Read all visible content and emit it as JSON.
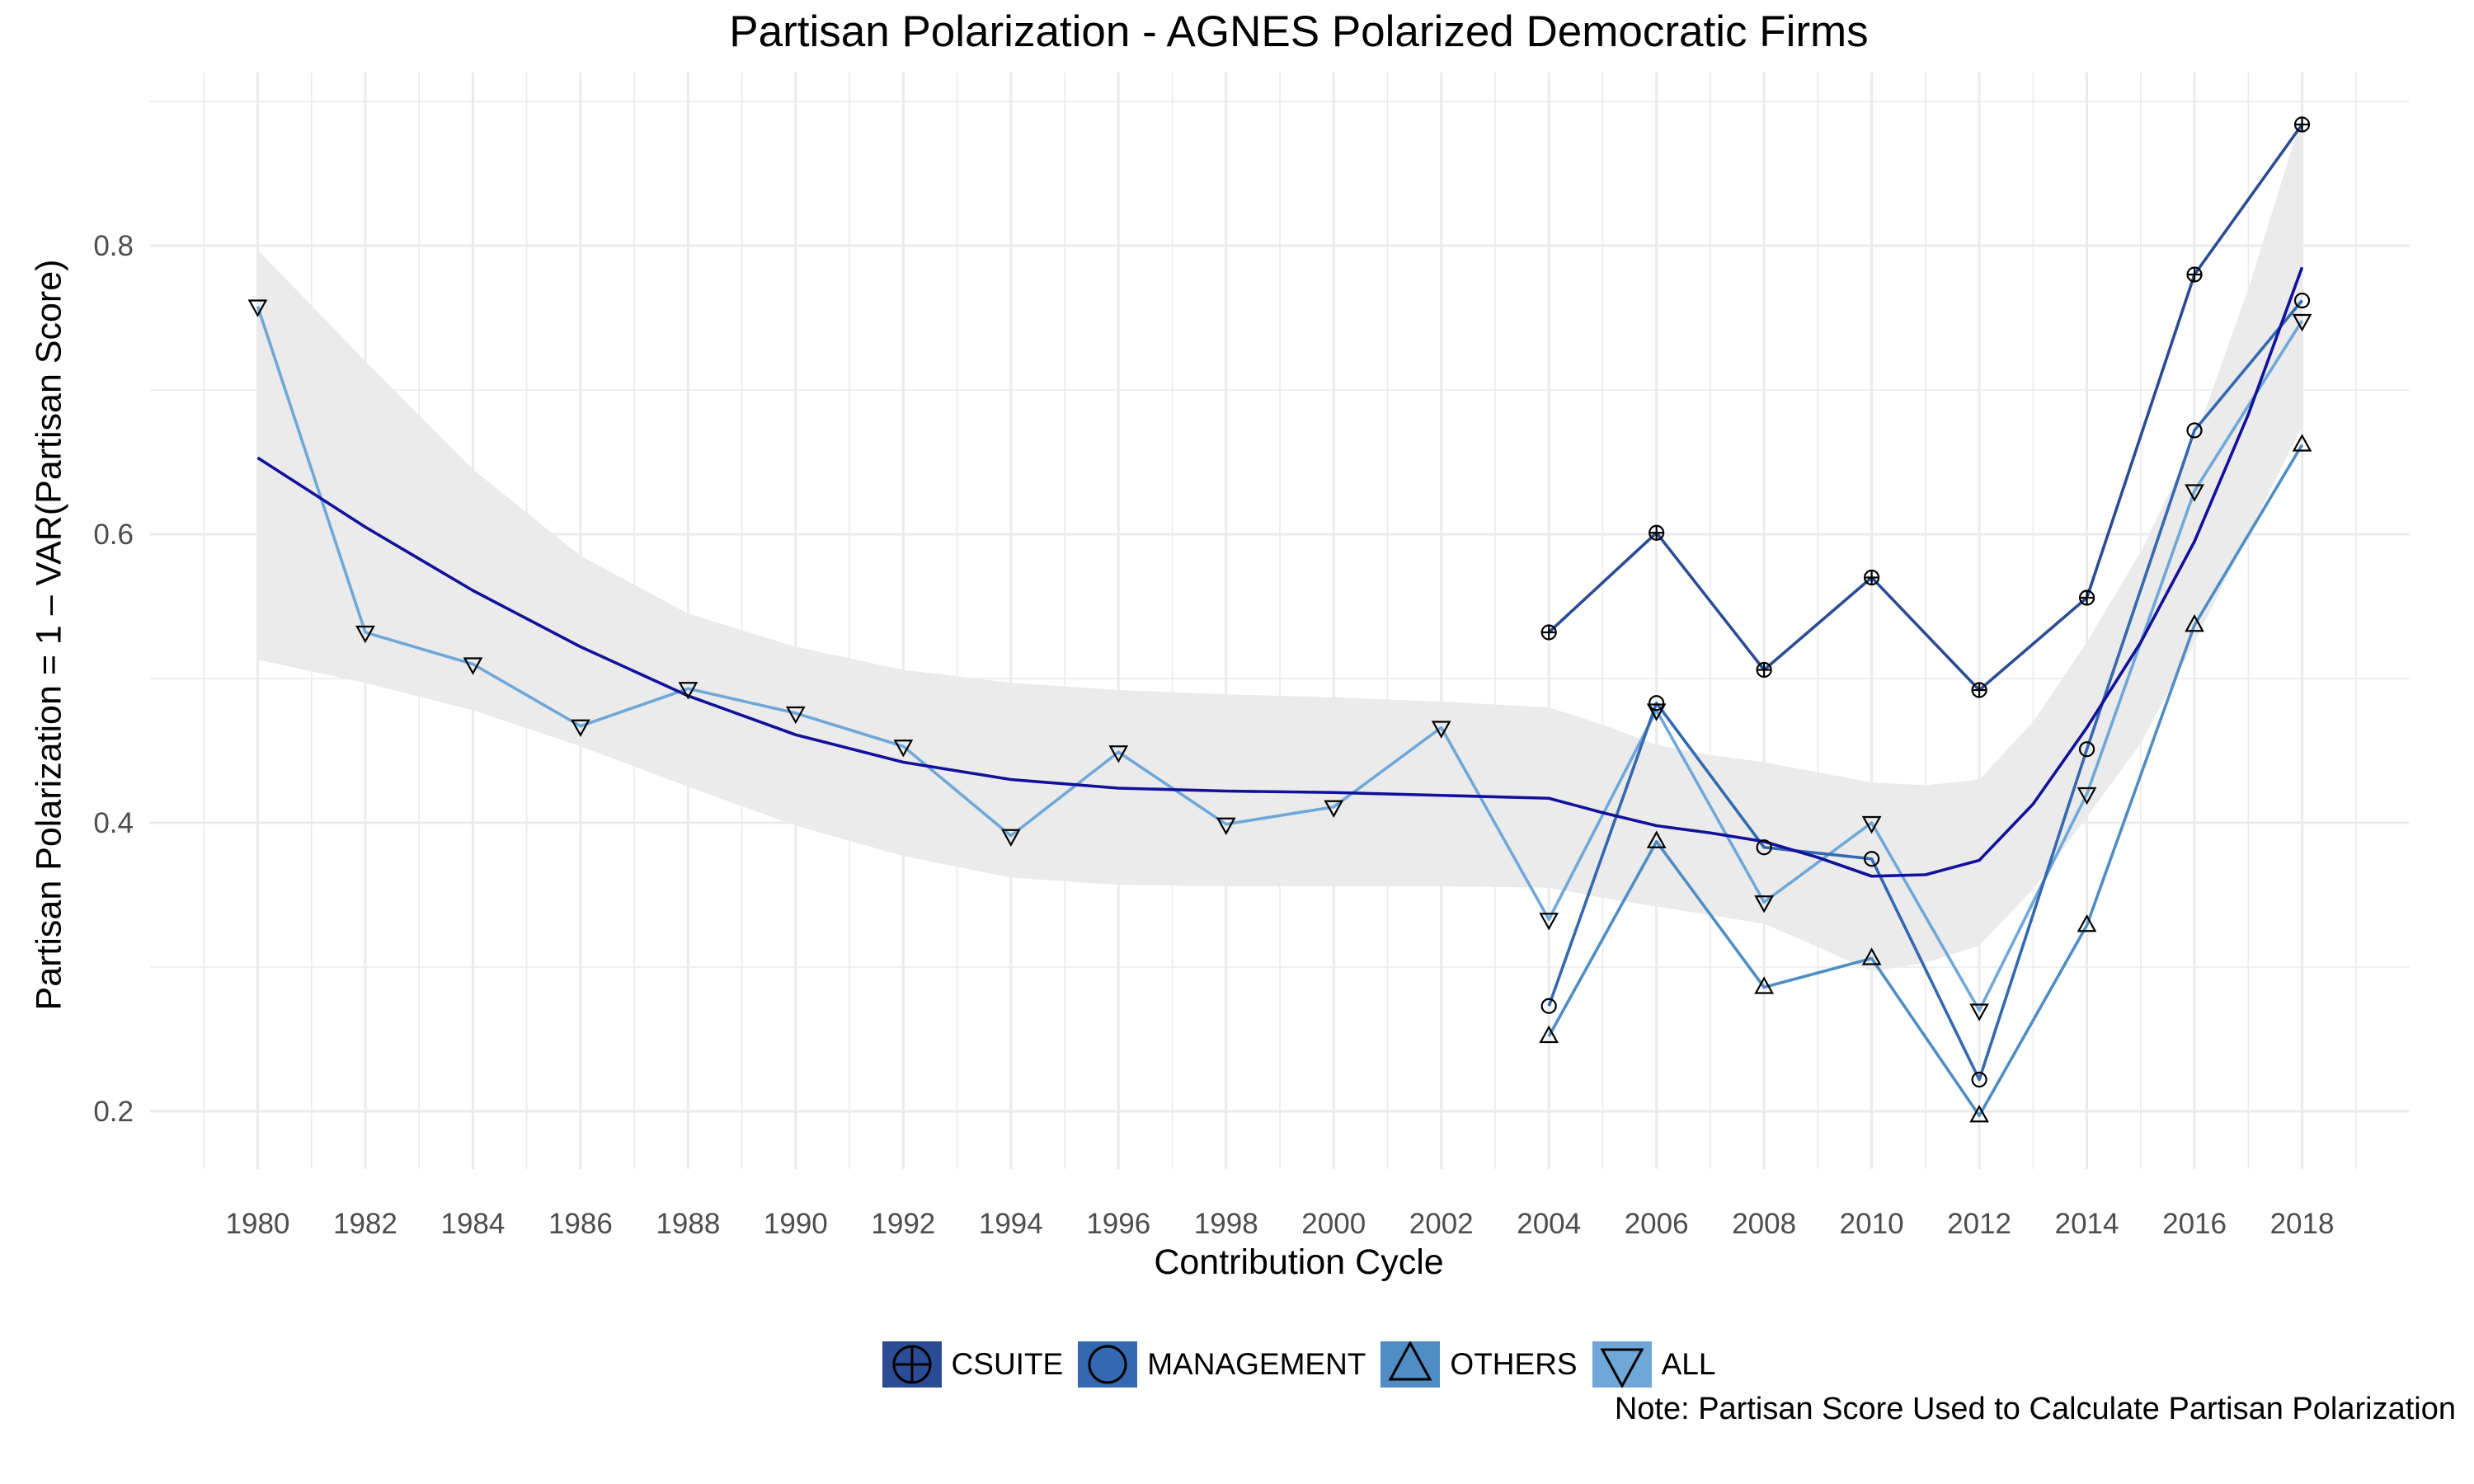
{
  "title": "Partisan Polarization - AGNES Polarized Democratic Firms",
  "xlabel": "Contribution Cycle",
  "ylabel": "Partisan Polarization = 1 – VAR(Partisan Score)",
  "note": "Note: Partisan Score Used to Calculate Partisan Polarization",
  "legend": [
    {
      "label": "CSUITE",
      "color": "#2B4C94",
      "shape": "circle-plus"
    },
    {
      "label": "MANAGEMENT",
      "color": "#3468B0",
      "shape": "circle"
    },
    {
      "label": "OTHERS",
      "color": "#4F8DC4",
      "shape": "triangle-up"
    },
    {
      "label": "ALL",
      "color": "#6FA8D8",
      "shape": "triangle-down"
    }
  ],
  "chart_data": {
    "type": "line",
    "title": "Partisan Polarization - AGNES Polarized Democratic Firms",
    "xlabel": "Contribution Cycle",
    "ylabel": "Partisan Polarization = 1 – VAR(Partisan Score)",
    "xlim": [
      1978,
      2020
    ],
    "ylim": [
      0.16,
      0.92
    ],
    "x_ticks": [
      1980,
      1982,
      1984,
      1986,
      1988,
      1990,
      1992,
      1994,
      1996,
      1998,
      2000,
      2002,
      2004,
      2006,
      2008,
      2010,
      2012,
      2014,
      2016,
      2018
    ],
    "y_ticks": [
      0.2,
      0.4,
      0.6,
      0.8
    ],
    "grid": true,
    "legend_position": "bottom",
    "series": [
      {
        "name": "CSUITE",
        "color": "#2B4C94",
        "shape": "circle-plus",
        "x": [
          2004,
          2006,
          2008,
          2010,
          2012,
          2014,
          2016,
          2018
        ],
        "y": [
          0.532,
          0.601,
          0.506,
          0.57,
          0.492,
          0.556,
          0.78,
          0.884
        ]
      },
      {
        "name": "MANAGEMENT",
        "color": "#3468B0",
        "shape": "circle",
        "x": [
          2004,
          2006,
          2008,
          2010,
          2012,
          2014,
          2016,
          2018
        ],
        "y": [
          0.273,
          0.483,
          0.383,
          0.375,
          0.222,
          0.451,
          0.672,
          0.762
        ]
      },
      {
        "name": "OTHERS",
        "color": "#4F8DC4",
        "shape": "triangle-up",
        "x": [
          2004,
          2006,
          2008,
          2010,
          2012,
          2014,
          2016,
          2018
        ],
        "y": [
          0.252,
          0.387,
          0.286,
          0.306,
          0.197,
          0.329,
          0.537,
          0.662
        ]
      },
      {
        "name": "ALL",
        "color": "#6FA8D8",
        "shape": "triangle-down",
        "x": [
          1980,
          1982,
          1984,
          1986,
          1988,
          1990,
          1992,
          1994,
          1996,
          1998,
          2000,
          2002,
          2004,
          2006,
          2008,
          2010,
          2012,
          2014,
          2016,
          2018
        ],
        "y": [
          0.758,
          0.532,
          0.51,
          0.467,
          0.493,
          0.476,
          0.453,
          0.391,
          0.449,
          0.399,
          0.411,
          0.466,
          0.333,
          0.478,
          0.345,
          0.4,
          0.27,
          0.42,
          0.63,
          0.748
        ]
      }
    ],
    "trend": {
      "color": "#11119A",
      "band_color": "#EBEBEB",
      "x": [
        1980,
        1982,
        1984,
        1986,
        1988,
        1990,
        1992,
        1994,
        1996,
        1998,
        2000,
        2002,
        2004,
        2005,
        2006,
        2007,
        2008,
        2009,
        2010,
        2011,
        2012,
        2013,
        2014,
        2015,
        2016,
        2017,
        2018
      ],
      "y": [
        0.653,
        0.605,
        0.561,
        0.522,
        0.488,
        0.461,
        0.442,
        0.43,
        0.424,
        0.422,
        0.421,
        0.419,
        0.417,
        0.407,
        0.398,
        0.393,
        0.387,
        0.376,
        0.363,
        0.364,
        0.374,
        0.413,
        0.466,
        0.525,
        0.595,
        0.683,
        0.785
      ],
      "lower": [
        0.513,
        0.497,
        0.478,
        0.453,
        0.425,
        0.398,
        0.377,
        0.362,
        0.357,
        0.356,
        0.356,
        0.356,
        0.355,
        0.348,
        0.342,
        0.336,
        0.33,
        0.314,
        0.297,
        0.303,
        0.315,
        0.354,
        0.404,
        0.455,
        0.525,
        0.6,
        0.675
      ],
      "upper": [
        0.797,
        0.72,
        0.645,
        0.585,
        0.545,
        0.522,
        0.506,
        0.497,
        0.492,
        0.489,
        0.487,
        0.484,
        0.48,
        0.468,
        0.454,
        0.447,
        0.442,
        0.435,
        0.428,
        0.426,
        0.43,
        0.47,
        0.525,
        0.588,
        0.665,
        0.77,
        0.89
      ]
    }
  }
}
